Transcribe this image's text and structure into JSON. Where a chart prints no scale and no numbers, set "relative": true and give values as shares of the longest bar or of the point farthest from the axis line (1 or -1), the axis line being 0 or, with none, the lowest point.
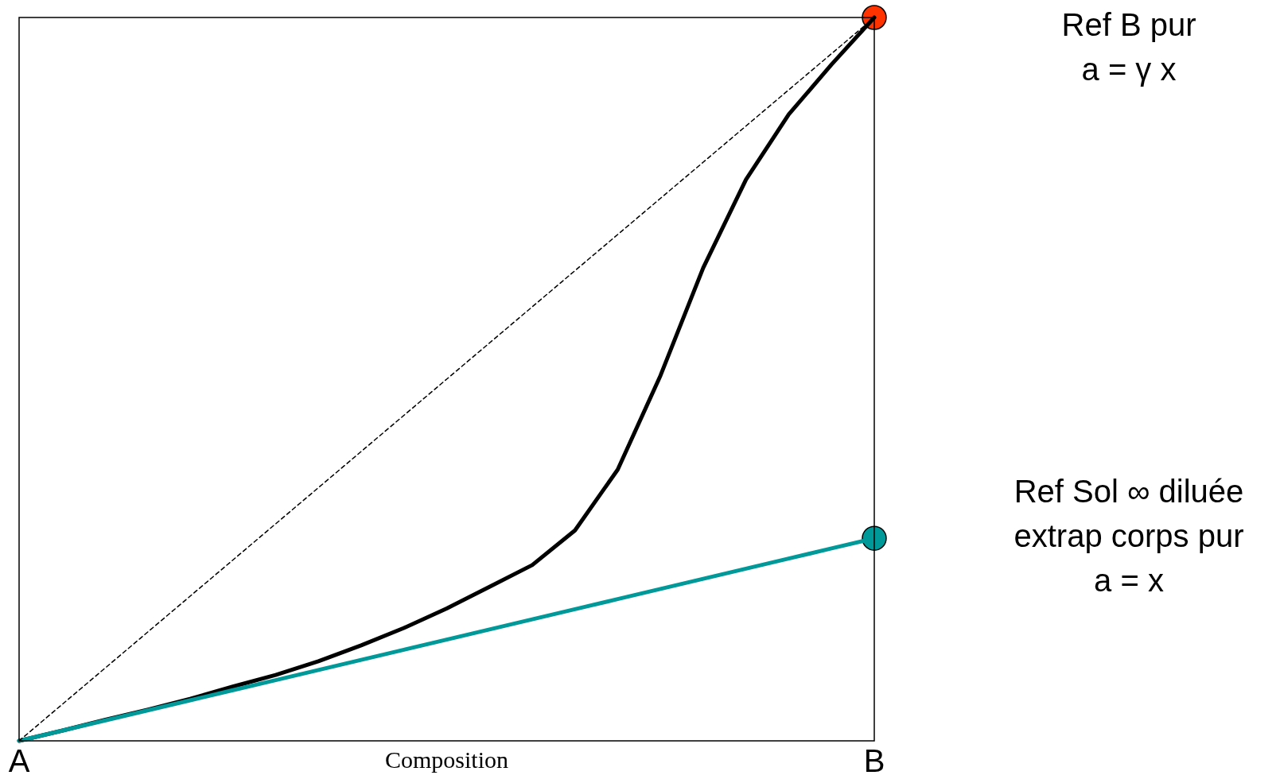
{
  "chart_data": {
    "type": "line",
    "relative": true,
    "xlabel": "Composition",
    "grid": false,
    "categories": [
      "A",
      null,
      null,
      null,
      null,
      null,
      null,
      null,
      null,
      null,
      null,
      null,
      null,
      null,
      null,
      null,
      null,
      null,
      null,
      null,
      "B"
    ],
    "series": [
      {
        "color": "#000000",
        "line_style": "dashed",
        "values": [
          0,
          0.05,
          0.1,
          0.15,
          0.2,
          0.25,
          0.3,
          0.35,
          0.4,
          0.45,
          0.5,
          0.55,
          0.6,
          0.65,
          0.7,
          0.75,
          0.8,
          0.85,
          0.9,
          0.95,
          1
        ]
      },
      {
        "color": "#00999a",
        "values": [
          0,
          0.014,
          0.028,
          0.042,
          0.056,
          0.07,
          0.084,
          0.098,
          0.112,
          0.126,
          0.14,
          0.154,
          0.168,
          0.182,
          0.196,
          0.21,
          0.224,
          0.238,
          0.252,
          0.266,
          0.28
        ]
      },
      {
        "color": "#000000",
        "values": [
          0,
          0.014,
          0.029,
          0.043,
          0.058,
          0.075,
          0.091,
          0.11,
          0.132,
          0.156,
          0.183,
          0.213,
          0.243,
          0.291,
          0.375,
          0.505,
          0.654,
          0.776,
          0.866,
          0.935,
          1
        ]
      },
      {
        "type": "scatter",
        "color": "#ff3300",
        "marker": "circle",
        "x": [
          "B"
        ],
        "values": [
          1
        ]
      },
      {
        "type": "scatter",
        "color": "#00999a",
        "marker": "circle",
        "x": [
          "B"
        ],
        "values": [
          0.28
        ]
      }
    ],
    "annotations": [
      "Ref B pur\na = γ x",
      "Ref Sol ∞ diluée\nextrap corps pur\na = x"
    ]
  }
}
